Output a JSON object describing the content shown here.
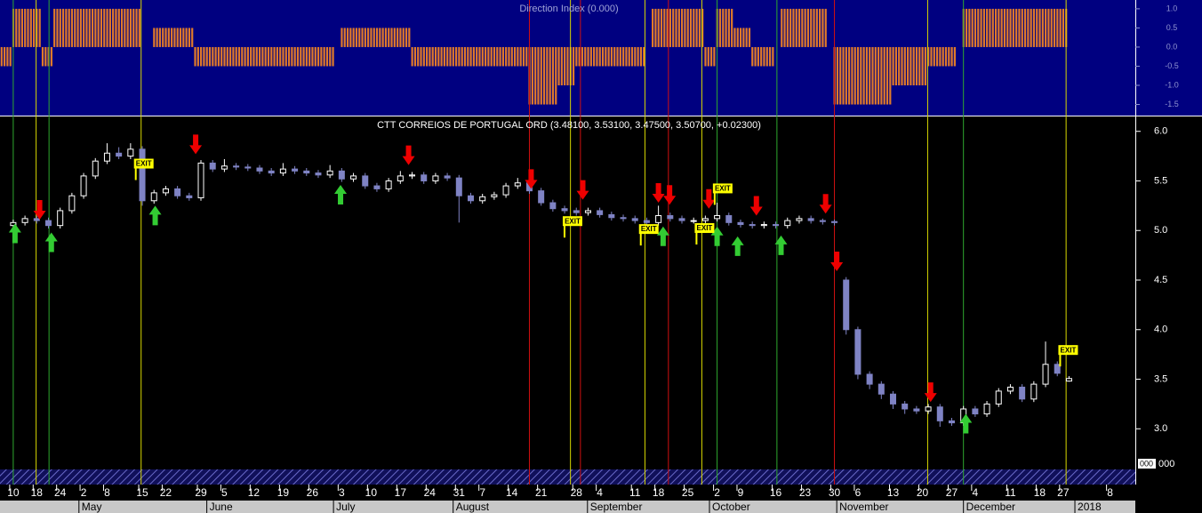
{
  "chart_data": {
    "type": "candlestick",
    "title": "CTT CORREIOS DE PORTUGAL ORD (3.48100, 3.53100, 3.47500, 3.50700, +0.02300)",
    "xlim": [
      -1.5,
      191
    ],
    "ylim": [
      2.59,
      6.15
    ],
    "yticks": [
      {
        "value": 6.0,
        "label": "6.0"
      },
      {
        "value": 5.5,
        "label": "5.5"
      },
      {
        "value": 5.0,
        "label": "5.0"
      },
      {
        "value": 4.5,
        "label": "4.5"
      },
      {
        "value": 4.0,
        "label": "4.0"
      },
      {
        "value": 3.5,
        "label": "3.5"
      },
      {
        "value": 3.0,
        "label": "3.0"
      }
    ],
    "xticks": [
      {
        "value": 0,
        "label": "10"
      },
      {
        "value": 4,
        "label": "18"
      },
      {
        "value": 8,
        "label": "24"
      },
      {
        "value": 12,
        "label": "2"
      },
      {
        "value": 16,
        "label": "8"
      },
      {
        "value": 22,
        "label": "15"
      },
      {
        "value": 26,
        "label": "22"
      },
      {
        "value": 32,
        "label": "29"
      },
      {
        "value": 36,
        "label": "5"
      },
      {
        "value": 41,
        "label": "12"
      },
      {
        "value": 46,
        "label": "19"
      },
      {
        "value": 51,
        "label": "26"
      },
      {
        "value": 56,
        "label": "3"
      },
      {
        "value": 61,
        "label": "10"
      },
      {
        "value": 66,
        "label": "17"
      },
      {
        "value": 71,
        "label": "24"
      },
      {
        "value": 76,
        "label": "31"
      },
      {
        "value": 80,
        "label": "7"
      },
      {
        "value": 85,
        "label": "14"
      },
      {
        "value": 90,
        "label": "21"
      },
      {
        "value": 96,
        "label": "28"
      },
      {
        "value": 100,
        "label": "4"
      },
      {
        "value": 106,
        "label": "11"
      },
      {
        "value": 110,
        "label": "18"
      },
      {
        "value": 115,
        "label": "25"
      },
      {
        "value": 120,
        "label": "2"
      },
      {
        "value": 124,
        "label": "9"
      },
      {
        "value": 130,
        "label": "16"
      },
      {
        "value": 135,
        "label": "23"
      },
      {
        "value": 140,
        "label": "30"
      },
      {
        "value": 144,
        "label": "6"
      },
      {
        "value": 150,
        "label": "13"
      },
      {
        "value": 155,
        "label": "20"
      },
      {
        "value": 160,
        "label": "27"
      },
      {
        "value": 164,
        "label": "4"
      },
      {
        "value": 170,
        "label": "11"
      },
      {
        "value": 175,
        "label": "18"
      },
      {
        "value": 179,
        "label": "27"
      },
      {
        "value": 187,
        "label": "8"
      }
    ],
    "month_ticks": [
      {
        "value": 11.2,
        "label": "May"
      },
      {
        "value": 33,
        "label": "June"
      },
      {
        "value": 54.6,
        "label": "July"
      },
      {
        "value": 75,
        "label": "August"
      },
      {
        "value": 97.9,
        "label": "September"
      },
      {
        "value": 118.7,
        "label": "October"
      },
      {
        "value": 140.4,
        "label": "November"
      },
      {
        "value": 162,
        "label": "December"
      },
      {
        "value": 181,
        "label": "2018"
      }
    ],
    "up_color": "#ffffff",
    "down_color": "#7f83c4",
    "candles": {
      "x": [
        0,
        2,
        4,
        6,
        8,
        10,
        12,
        14,
        16,
        18,
        20,
        22,
        24,
        26,
        28,
        30,
        32,
        34,
        36,
        38,
        40,
        42,
        44,
        46,
        48,
        50,
        52,
        54,
        56,
        58,
        60,
        62,
        64,
        66,
        68,
        70,
        72,
        74,
        76,
        78,
        80,
        82,
        84,
        86,
        88,
        90,
        92,
        94,
        96,
        98,
        100,
        102,
        104,
        106,
        108,
        110,
        112,
        114,
        116,
        118,
        120,
        122,
        124,
        126,
        128,
        130,
        132,
        134,
        136,
        138,
        140,
        142,
        144,
        146,
        148,
        150,
        152,
        154,
        156,
        158,
        160,
        162,
        164,
        166,
        168,
        170,
        172,
        174,
        176,
        178,
        180
      ],
      "open": [
        5.05,
        5.08,
        5.12,
        5.1,
        5.05,
        5.2,
        5.35,
        5.55,
        5.7,
        5.78,
        5.75,
        5.82,
        5.3,
        5.38,
        5.42,
        5.35,
        5.33,
        5.68,
        5.62,
        5.65,
        5.64,
        5.63,
        5.6,
        5.58,
        5.62,
        5.6,
        5.58,
        5.56,
        5.6,
        5.52,
        5.55,
        5.45,
        5.42,
        5.5,
        5.55,
        5.56,
        5.5,
        5.55,
        5.53,
        5.35,
        5.3,
        5.34,
        5.36,
        5.45,
        5.48,
        5.4,
        5.28,
        5.22,
        5.2,
        5.18,
        5.2,
        5.16,
        5.13,
        5.12,
        5.1,
        5.08,
        5.15,
        5.12,
        5.1,
        5.1,
        5.12,
        5.15,
        5.08,
        5.06,
        5.05,
        5.06,
        5.05,
        5.1,
        5.12,
        5.1,
        5.09,
        4.5,
        4.0,
        3.55,
        3.45,
        3.35,
        3.25,
        3.2,
        3.18,
        3.22,
        3.08,
        3.06,
        3.2,
        3.15,
        3.25,
        3.38,
        3.42,
        3.3,
        3.45,
        3.65,
        3.481
      ],
      "high": [
        5.11,
        5.15,
        5.15,
        5.13,
        5.23,
        5.38,
        5.58,
        5.73,
        5.88,
        5.84,
        5.88,
        5.85,
        5.41,
        5.45,
        5.45,
        5.38,
        5.71,
        5.71,
        5.72,
        5.68,
        5.67,
        5.66,
        5.63,
        5.68,
        5.65,
        5.63,
        5.61,
        5.66,
        5.63,
        5.58,
        5.58,
        5.48,
        5.53,
        5.6,
        5.59,
        5.59,
        5.58,
        5.58,
        5.56,
        5.38,
        5.37,
        5.39,
        5.48,
        5.53,
        5.51,
        5.43,
        5.31,
        5.25,
        5.23,
        5.23,
        5.23,
        5.19,
        5.16,
        5.15,
        5.13,
        5.25,
        5.18,
        5.15,
        5.13,
        5.15,
        5.28,
        5.18,
        5.11,
        5.09,
        5.09,
        5.09,
        5.13,
        5.15,
        5.15,
        5.12,
        5.11,
        4.53,
        4.03,
        3.58,
        3.48,
        3.38,
        3.28,
        3.23,
        3.25,
        3.25,
        3.11,
        3.23,
        3.23,
        3.28,
        3.41,
        3.45,
        3.45,
        3.48,
        3.88,
        3.68,
        3.531
      ],
      "low": [
        5.02,
        5.05,
        5.07,
        5.02,
        5.02,
        5.17,
        5.32,
        5.52,
        5.67,
        5.72,
        5.72,
        5.25,
        5.27,
        5.35,
        5.32,
        5.3,
        5.3,
        5.59,
        5.59,
        5.61,
        5.6,
        5.57,
        5.55,
        5.55,
        5.57,
        5.55,
        5.53,
        5.53,
        5.49,
        5.49,
        5.42,
        5.39,
        5.39,
        5.47,
        5.52,
        5.47,
        5.47,
        5.5,
        5.08,
        5.27,
        5.27,
        5.31,
        5.33,
        5.42,
        5.37,
        5.25,
        5.19,
        5.17,
        5.15,
        5.15,
        5.13,
        5.1,
        5.09,
        5.07,
        5.05,
        5.05,
        5.09,
        5.07,
        5.07,
        5.07,
        5.09,
        5.05,
        5.03,
        5.02,
        5.02,
        5.02,
        5.02,
        5.07,
        5.07,
        5.06,
        5.05,
        3.95,
        3.5,
        3.4,
        3.3,
        3.2,
        3.15,
        3.15,
        3.15,
        3.02,
        3.03,
        3.03,
        3.12,
        3.12,
        3.22,
        3.35,
        3.27,
        3.27,
        3.42,
        3.53,
        3.475
      ],
      "close": [
        5.08,
        5.12,
        5.1,
        5.05,
        5.2,
        5.35,
        5.55,
        5.7,
        5.78,
        5.75,
        5.82,
        5.3,
        5.38,
        5.42,
        5.35,
        5.33,
        5.68,
        5.62,
        5.65,
        5.64,
        5.63,
        5.6,
        5.58,
        5.62,
        5.6,
        5.58,
        5.56,
        5.6,
        5.52,
        5.55,
        5.45,
        5.42,
        5.5,
        5.55,
        5.56,
        5.5,
        5.55,
        5.53,
        5.35,
        5.3,
        5.34,
        5.36,
        5.45,
        5.48,
        5.4,
        5.28,
        5.22,
        5.2,
        5.18,
        5.2,
        5.16,
        5.13,
        5.12,
        5.1,
        5.08,
        5.15,
        5.12,
        5.1,
        5.1,
        5.12,
        5.15,
        5.08,
        5.06,
        5.05,
        5.06,
        5.05,
        5.1,
        5.12,
        5.1,
        5.09,
        5.08,
        4.0,
        3.55,
        3.45,
        3.35,
        3.25,
        3.2,
        3.18,
        3.22,
        3.08,
        3.06,
        3.2,
        3.15,
        3.25,
        3.38,
        3.42,
        3.3,
        3.45,
        3.65,
        3.56,
        3.507
      ]
    },
    "signal_lines": [
      {
        "x": 0,
        "color": "#2ea82e"
      },
      {
        "x": 6.1,
        "color": "#2ea82e"
      },
      {
        "x": 120,
        "color": "#2ea82e"
      },
      {
        "x": 130.2,
        "color": "#2ea82e"
      },
      {
        "x": 162,
        "color": "#2ea82e"
      },
      {
        "x": 3.9,
        "color": "#d8d800"
      },
      {
        "x": 21.8,
        "color": "#d8d800"
      },
      {
        "x": 95,
        "color": "#d8d800"
      },
      {
        "x": 107.7,
        "color": "#d8d800"
      },
      {
        "x": 117.4,
        "color": "#d8d800"
      },
      {
        "x": 155.9,
        "color": "#d8d800"
      },
      {
        "x": 179.5,
        "color": "#d8d800"
      },
      {
        "x": 88,
        "color": "#d01010"
      },
      {
        "x": 96.7,
        "color": "#d01010"
      },
      {
        "x": 111.7,
        "color": "#d01010"
      },
      {
        "x": 140,
        "color": "#d01010"
      }
    ],
    "buy_color": "#33cc33",
    "sell_color": "#ee0000",
    "buy_arrows": [
      {
        "x": 0.3,
        "y": 5.07
      },
      {
        "x": 6.5,
        "y": 4.98
      },
      {
        "x": 24.2,
        "y": 5.25
      },
      {
        "x": 55.8,
        "y": 5.46
      },
      {
        "x": 110.8,
        "y": 5.04
      },
      {
        "x": 120,
        "y": 5.04
      },
      {
        "x": 123.5,
        "y": 4.94
      },
      {
        "x": 130.9,
        "y": 4.95
      },
      {
        "x": 162.4,
        "y": 3.15
      }
    ],
    "sell_arrows": [
      {
        "x": 4.5,
        "y": 5.11
      },
      {
        "x": 31.1,
        "y": 5.77
      },
      {
        "x": 67.4,
        "y": 5.66
      },
      {
        "x": 88.3,
        "y": 5.42
      },
      {
        "x": 97.1,
        "y": 5.31
      },
      {
        "x": 110,
        "y": 5.28
      },
      {
        "x": 111.9,
        "y": 5.26
      },
      {
        "x": 118.6,
        "y": 5.22
      },
      {
        "x": 126.7,
        "y": 5.15
      },
      {
        "x": 138.5,
        "y": 5.17
      },
      {
        "x": 140.4,
        "y": 4.59
      },
      {
        "x": 156.4,
        "y": 3.27
      }
    ],
    "exit_label": "EXIT",
    "exits": [
      {
        "x": 22.1,
        "y": 5.67
      },
      {
        "x": 95.2,
        "y": 5.09
      },
      {
        "x": 108.2,
        "y": 5.01
      },
      {
        "x": 117.7,
        "y": 5.02
      },
      {
        "x": 120.8,
        "y": 5.42
      },
      {
        "x": 179.7,
        "y": 3.79
      }
    ],
    "volume_label": "000",
    "indicator": {
      "title": "Direction Index (0.000)",
      "color": "#e07a2a",
      "ylim": [
        -1.79,
        1.23
      ],
      "yticks": [
        {
          "value": 1.0,
          "label": "1.0"
        },
        {
          "value": 0.5,
          "label": "0.5"
        },
        {
          "value": 0.0,
          "label": "0.0"
        },
        {
          "value": -0.5,
          "label": "-0.5"
        },
        {
          "value": -1.0,
          "label": "-1.0"
        },
        {
          "value": -1.5,
          "label": "-1.5"
        }
      ],
      "segments": [
        {
          "from": -2,
          "to": -1,
          "value": -0.5
        },
        {
          "from": 0,
          "to": 4,
          "value": 1.0
        },
        {
          "from": 5,
          "to": 6,
          "value": -0.5
        },
        {
          "from": 7,
          "to": 21,
          "value": 1.0
        },
        {
          "from": 24,
          "to": 30,
          "value": 0.5
        },
        {
          "from": 31,
          "to": 54,
          "value": -0.5
        },
        {
          "from": 56,
          "to": 67,
          "value": 0.5
        },
        {
          "from": 68,
          "to": 87,
          "value": -0.5
        },
        {
          "from": 88,
          "to": 92,
          "value": -1.5
        },
        {
          "from": 93,
          "to": 95,
          "value": -1.0
        },
        {
          "from": 96,
          "to": 107,
          "value": -0.5
        },
        {
          "from": 109,
          "to": 117,
          "value": 1.0
        },
        {
          "from": 118,
          "to": 119,
          "value": -0.5
        },
        {
          "from": 120,
          "to": 122,
          "value": 1.0
        },
        {
          "from": 123,
          "to": 125,
          "value": 0.5
        },
        {
          "from": 126,
          "to": 129,
          "value": -0.5
        },
        {
          "from": 131,
          "to": 138,
          "value": 1.0
        },
        {
          "from": 140,
          "to": 149,
          "value": -1.5
        },
        {
          "from": 150,
          "to": 155,
          "value": -1.0
        },
        {
          "from": 156,
          "to": 160,
          "value": -0.5
        },
        {
          "from": 162,
          "to": 179,
          "value": 1.0
        }
      ]
    }
  }
}
